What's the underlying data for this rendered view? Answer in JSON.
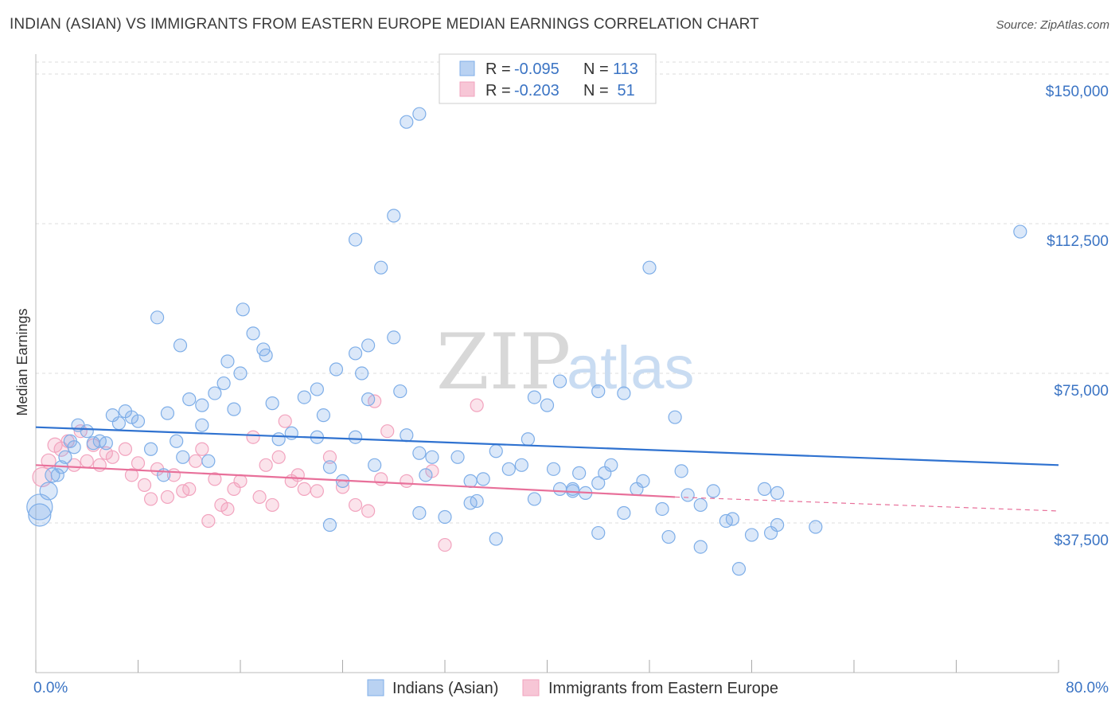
{
  "title": "INDIAN (ASIAN) VS IMMIGRANTS FROM EASTERN EUROPE MEDIAN EARNINGS CORRELATION CHART",
  "source": "Source: ZipAtlas.com",
  "watermark": {
    "zip": "ZIP",
    "atlas": "atlas"
  },
  "colors": {
    "blue": "#7eaee8",
    "blue_line": "#2f72d0",
    "pink": "#f2a3be",
    "pink_line": "#e8709a",
    "tick_text": "#3b74c4",
    "grid": "#dddddd"
  },
  "legend": {
    "rows": [
      {
        "r_label": "R = ",
        "r_value": "-0.095",
        "n_label": "N = ",
        "n_value": "113",
        "series": "blue"
      },
      {
        "r_label": "R = ",
        "r_value": "-0.203",
        "n_label": "N = ",
        "n_value": " 51",
        "series": "pink"
      }
    ]
  },
  "chart_data": {
    "type": "scatter",
    "title": "INDIAN (ASIAN) VS IMMIGRANTS FROM EASTERN EUROPE MEDIAN EARNINGS CORRELATION CHART",
    "xlabel": "",
    "ylabel": "Median Earnings",
    "xlim": [
      0,
      80
    ],
    "ylim": [
      0,
      153000
    ],
    "x_tick_labels": {
      "min": "0.0%",
      "max": "80.0%"
    },
    "y_ticks": [
      {
        "value": 37500,
        "label": "$37,500"
      },
      {
        "value": 75000,
        "label": "$75,000"
      },
      {
        "value": 112500,
        "label": "$112,500"
      },
      {
        "value": 150000,
        "label": "$150,000"
      }
    ],
    "series": [
      {
        "name": "Indians (Asian)",
        "color": "blue",
        "trend": {
          "x0": 0,
          "y0": 61500,
          "x1": 80,
          "y1": 52000,
          "dashed_from": null
        },
        "points": [
          [
            0.3,
            41500,
            16
          ],
          [
            0.3,
            39500,
            14
          ],
          [
            1,
            45500,
            11
          ],
          [
            1.3,
            49500,
            9
          ],
          [
            1.7,
            49500,
            8
          ],
          [
            2,
            51500,
            8
          ],
          [
            2.3,
            54000,
            8
          ],
          [
            2.7,
            58000,
            8
          ],
          [
            3,
            56500,
            8
          ],
          [
            3.3,
            62000,
            8
          ],
          [
            4,
            60500,
            8
          ],
          [
            4.5,
            57500,
            8
          ],
          [
            5,
            58000,
            8
          ],
          [
            5.5,
            57500,
            8
          ],
          [
            6,
            64500,
            8
          ],
          [
            6.5,
            62500,
            8
          ],
          [
            7,
            65500,
            8
          ],
          [
            7.5,
            64000,
            8
          ],
          [
            8,
            63000,
            8
          ],
          [
            9,
            56000,
            8
          ],
          [
            10.3,
            65000,
            8
          ],
          [
            11,
            58000,
            8
          ],
          [
            12,
            68500,
            8
          ],
          [
            13,
            67000,
            8
          ],
          [
            11.5,
            54000,
            8
          ],
          [
            10,
            49500,
            8
          ],
          [
            13.5,
            53000,
            8
          ],
          [
            14,
            70000,
            8
          ],
          [
            14.7,
            72500,
            8
          ],
          [
            15.5,
            66000,
            8
          ],
          [
            16,
            75000,
            8
          ],
          [
            15,
            78000,
            8
          ],
          [
            17,
            85000,
            8
          ],
          [
            16.2,
            91000,
            8
          ],
          [
            18,
            79500,
            8
          ],
          [
            18.5,
            67500,
            8
          ],
          [
            17.8,
            81000,
            8
          ],
          [
            9.5,
            89000,
            8
          ],
          [
            11.3,
            82000,
            8
          ],
          [
            13,
            62000,
            8
          ],
          [
            19,
            58500,
            8
          ],
          [
            20,
            60000,
            8
          ],
          [
            21,
            69000,
            8
          ],
          [
            22,
            71000,
            8
          ],
          [
            22.5,
            64500,
            8
          ],
          [
            23.5,
            76000,
            8
          ],
          [
            22,
            59000,
            8
          ],
          [
            23,
            51500,
            8
          ],
          [
            24,
            48000,
            8
          ],
          [
            25,
            80000,
            8
          ],
          [
            25.5,
            75000,
            8
          ],
          [
            26,
            68500,
            8
          ],
          [
            25,
            59000,
            8
          ],
          [
            26.5,
            52000,
            8
          ],
          [
            28,
            84000,
            8
          ],
          [
            28.5,
            70500,
            8
          ],
          [
            27,
            101500,
            8
          ],
          [
            28,
            114500,
            8
          ],
          [
            25,
            108500,
            8
          ],
          [
            29,
            59500,
            8
          ],
          [
            30,
            55000,
            8
          ],
          [
            31,
            54000,
            8
          ],
          [
            30.5,
            49500,
            8
          ],
          [
            32,
            39000,
            8
          ],
          [
            33,
            54000,
            8
          ],
          [
            34,
            48000,
            8
          ],
          [
            34.5,
            43000,
            8
          ],
          [
            35,
            48500,
            8
          ],
          [
            36,
            55500,
            8
          ],
          [
            37,
            51000,
            8
          ],
          [
            38,
            52000,
            8
          ],
          [
            39,
            43500,
            8
          ],
          [
            40.5,
            51000,
            8
          ],
          [
            41,
            46000,
            8
          ],
          [
            42,
            45500,
            8
          ],
          [
            42.5,
            50000,
            8
          ],
          [
            43,
            45000,
            8
          ],
          [
            44,
            47500,
            8
          ],
          [
            45,
            52000,
            8
          ],
          [
            46,
            40000,
            8
          ],
          [
            47,
            46000,
            8
          ],
          [
            49,
            41000,
            8
          ],
          [
            49.5,
            34000,
            8
          ],
          [
            50,
            64000,
            8
          ],
          [
            50.5,
            50500,
            8
          ],
          [
            51,
            44500,
            8
          ],
          [
            52,
            42000,
            8
          ],
          [
            53,
            45500,
            8
          ],
          [
            54,
            38000,
            8
          ],
          [
            54.5,
            38500,
            8
          ],
          [
            56,
            34500,
            8
          ],
          [
            57,
            46000,
            8
          ],
          [
            57.5,
            35000,
            8
          ],
          [
            58,
            45000,
            8
          ],
          [
            52,
            31500,
            8
          ],
          [
            48,
            101500,
            8
          ],
          [
            44,
            70500,
            8
          ],
          [
            46,
            70000,
            8
          ],
          [
            38.5,
            58500,
            8
          ],
          [
            39,
            69000,
            8
          ],
          [
            30,
            140000,
            8
          ],
          [
            29,
            138000,
            8
          ],
          [
            23,
            37000,
            8
          ],
          [
            26,
            82000,
            8
          ],
          [
            30,
            40000,
            8
          ],
          [
            34,
            42500,
            8
          ],
          [
            36,
            33500,
            8
          ],
          [
            40,
            67000,
            8
          ],
          [
            41,
            73000,
            8
          ],
          [
            42,
            46000,
            8
          ],
          [
            44,
            35000,
            8
          ],
          [
            44.5,
            50000,
            8
          ],
          [
            47.5,
            48000,
            8
          ],
          [
            77,
            110500,
            8
          ],
          [
            58,
            37000,
            8
          ],
          [
            61,
            36500,
            8
          ],
          [
            55,
            26000,
            8
          ]
        ]
      },
      {
        "name": "Immigrants from Eastern Europe",
        "color": "pink",
        "trend": {
          "x0": 0,
          "y0": 52000,
          "x1": 50,
          "y1": 44000,
          "dashed_from": 50,
          "x2": 80,
          "y2": 40500
        },
        "points": [
          [
            0.5,
            49000,
            12
          ],
          [
            1,
            53000,
            9
          ],
          [
            1.5,
            57000,
            9
          ],
          [
            2,
            56000,
            9
          ],
          [
            2.5,
            58000,
            8
          ],
          [
            3,
            52000,
            8
          ],
          [
            3.5,
            60500,
            8
          ],
          [
            4,
            53000,
            8
          ],
          [
            4.5,
            57000,
            8
          ],
          [
            5,
            52000,
            8
          ],
          [
            5.5,
            55000,
            8
          ],
          [
            6,
            54000,
            8
          ],
          [
            7,
            56000,
            8
          ],
          [
            7.5,
            49500,
            8
          ],
          [
            8,
            52500,
            8
          ],
          [
            8.5,
            47000,
            8
          ],
          [
            9,
            43500,
            8
          ],
          [
            9.5,
            51000,
            8
          ],
          [
            10.3,
            44000,
            8
          ],
          [
            10.8,
            49500,
            8
          ],
          [
            11.5,
            45500,
            8
          ],
          [
            12,
            46000,
            8
          ],
          [
            12.5,
            53000,
            8
          ],
          [
            13,
            56000,
            8
          ],
          [
            13.5,
            38000,
            8
          ],
          [
            14,
            48500,
            8
          ],
          [
            14.5,
            42000,
            8
          ],
          [
            15,
            41000,
            8
          ],
          [
            15.5,
            46000,
            8
          ],
          [
            16,
            48000,
            8
          ],
          [
            17,
            59000,
            8
          ],
          [
            17.5,
            44000,
            8
          ],
          [
            18,
            52000,
            8
          ],
          [
            18.5,
            42000,
            8
          ],
          [
            19,
            54000,
            8
          ],
          [
            19.5,
            63000,
            8
          ],
          [
            20,
            48000,
            8
          ],
          [
            20.5,
            49500,
            8
          ],
          [
            21,
            46000,
            8
          ],
          [
            22,
            45500,
            8
          ],
          [
            23,
            54000,
            8
          ],
          [
            24,
            46500,
            8
          ],
          [
            25,
            42000,
            8
          ],
          [
            26,
            40500,
            8
          ],
          [
            26.5,
            68000,
            8
          ],
          [
            27,
            48500,
            8
          ],
          [
            27.5,
            60500,
            8
          ],
          [
            29,
            48000,
            8
          ],
          [
            31,
            50500,
            8
          ],
          [
            32,
            32000,
            8
          ],
          [
            34.5,
            67000,
            8
          ]
        ]
      }
    ]
  },
  "bottom_legend": [
    {
      "label": "Indians (Asian)",
      "series": "blue"
    },
    {
      "label": "Immigrants from Eastern Europe",
      "series": "pink"
    }
  ]
}
